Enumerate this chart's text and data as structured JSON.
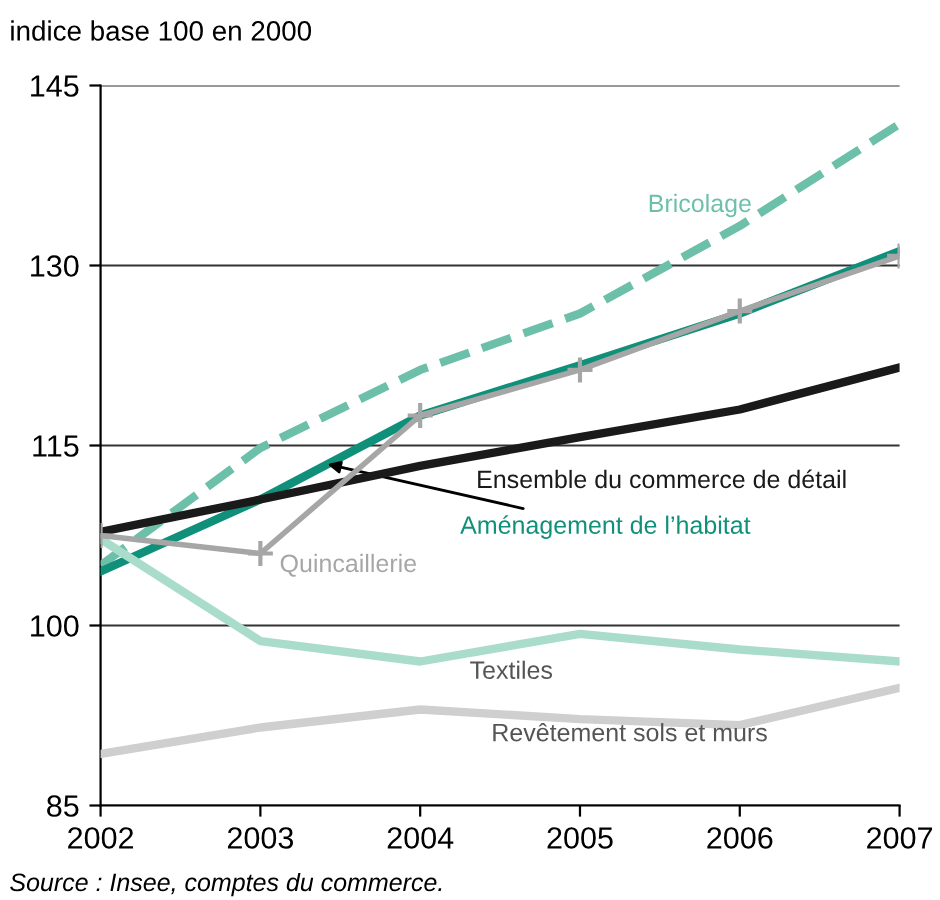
{
  "chart_data": {
    "type": "line",
    "ylabel": "indice base 100 en 2000",
    "x": [
      2002,
      2003,
      2004,
      2005,
      2006,
      2007
    ],
    "series": [
      {
        "name": "Bricolage",
        "color": "#6cbfa8",
        "line_style": "dashed",
        "values": [
          105,
          114.8,
          121.3,
          126,
          133.3,
          141.8
        ]
      },
      {
        "name": "Aménagement de l’habitat",
        "color": "#10907a",
        "values": [
          104.5,
          110.5,
          117.5,
          121.7,
          126,
          131.2
        ]
      },
      {
        "name": "Quincaillerie",
        "color": "#a6a6a6",
        "marker": "cross",
        "values": [
          107.5,
          106,
          117.5,
          121.3,
          126.2,
          130.8
        ]
      },
      {
        "name": "Ensemble du commerce de détail",
        "color": "#1a1a1a",
        "values": [
          107.8,
          110.5,
          113.3,
          115.7,
          118,
          121.5
        ]
      },
      {
        "name": "Textiles",
        "color": "#a9dccb",
        "values": [
          107.2,
          98.7,
          97,
          99.3,
          98,
          97
        ]
      },
      {
        "name": "Revêtement sols et murs",
        "color": "#cfcfcf",
        "values": [
          89.3,
          91.5,
          93,
          92.2,
          91.7,
          94.8
        ]
      }
    ],
    "xlim": [
      2002,
      2007
    ],
    "xticks": [
      2002,
      2003,
      2004,
      2005,
      2006,
      2007
    ],
    "ylim": [
      85,
      145
    ],
    "yticks": [
      85,
      100,
      115,
      130,
      145
    ],
    "grid": "y",
    "annotations": [
      "Source : Insee, comptes du commerce."
    ]
  }
}
